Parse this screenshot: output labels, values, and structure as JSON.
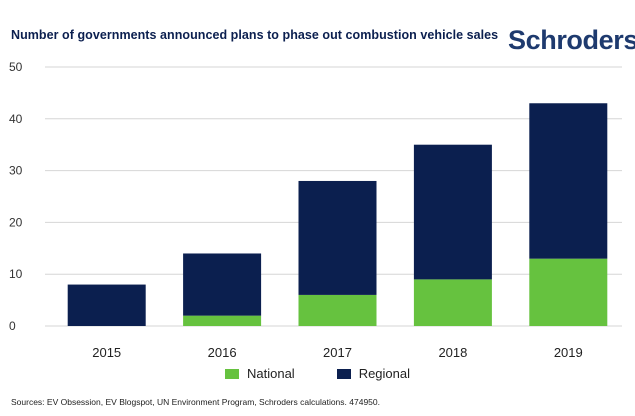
{
  "header": {
    "title": "Number of governments announced plans to phase out combustion vehicle sales",
    "brand": "Schroders"
  },
  "chart_data": {
    "type": "bar",
    "stacked": true,
    "title": "Number of governments announced plans to phase out combustion vehicle sales",
    "categories": [
      "2015",
      "2016",
      "2017",
      "2018",
      "2019"
    ],
    "series": [
      {
        "name": "National",
        "values": [
          0,
          2,
          6,
          9,
          13
        ],
        "color": "#66c23f"
      },
      {
        "name": "Regional",
        "values": [
          8,
          12,
          22,
          26,
          30
        ],
        "color": "#0b1f4f"
      }
    ],
    "ylim": [
      0,
      50
    ],
    "yticks": [
      0,
      10,
      20,
      30,
      40,
      50
    ],
    "xlabel": "",
    "ylabel": "",
    "grid": true,
    "legend_position": "bottom-center"
  },
  "legend": {
    "national": "National",
    "regional": "Regional"
  },
  "footer": {
    "source": "Sources: EV Obsession, EV Blogspot, UN Environment Program, Schroders calculations. 474950."
  }
}
